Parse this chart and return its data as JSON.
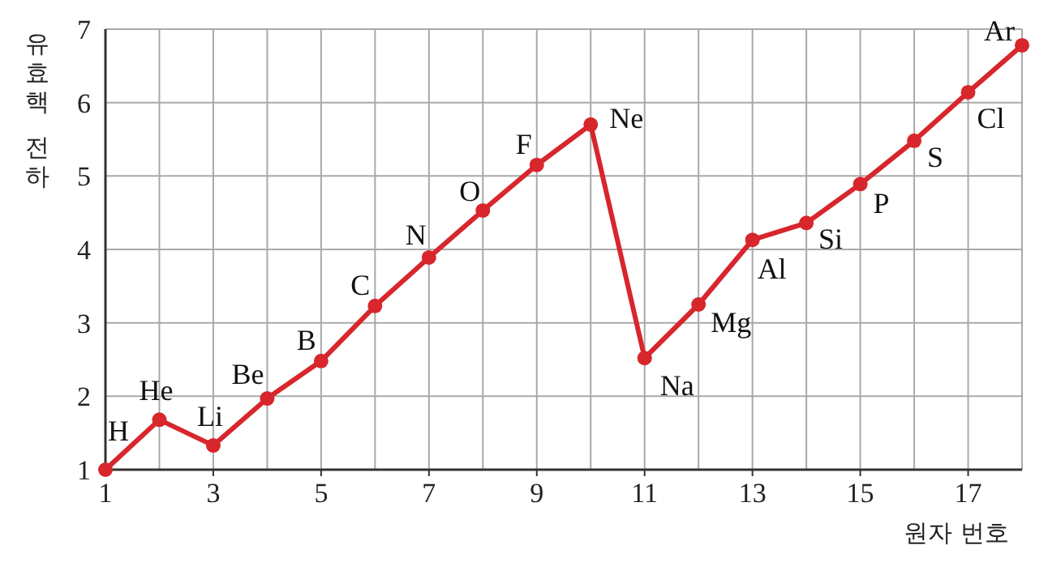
{
  "chart_data": {
    "type": "line",
    "xlabel": "원자 번호",
    "ylabel": "유효핵 전하",
    "x": [
      1,
      2,
      3,
      4,
      5,
      6,
      7,
      8,
      9,
      10,
      11,
      12,
      13,
      14,
      15,
      16,
      17,
      18
    ],
    "series": [
      {
        "color": "#d7262c",
        "values": [
          1,
          1.68,
          1.33,
          1.97,
          2.48,
          3.23,
          3.89,
          4.53,
          5.15,
          5.7,
          2.52,
          3.25,
          4.13,
          4.36,
          4.89,
          5.48,
          6.14,
          6.78
        ]
      }
    ],
    "xlim": [
      1,
      18
    ],
    "xticks": [
      1,
      3,
      5,
      7,
      9,
      11,
      13,
      15,
      17
    ],
    "ylim": [
      1,
      7
    ],
    "yticks": [
      1,
      2,
      3,
      4,
      5,
      6,
      7
    ],
    "grid": true,
    "marker": "circle",
    "line_style": "solid",
    "annotations": [
      {
        "text": "H",
        "x": 1,
        "y": 1
      },
      {
        "text": "He",
        "x": 2,
        "y": 1.68
      },
      {
        "text": "Li",
        "x": 3,
        "y": 1.33
      },
      {
        "text": "Be",
        "x": 4,
        "y": 1.97
      },
      {
        "text": "B",
        "x": 5,
        "y": 2.48
      },
      {
        "text": "C",
        "x": 6,
        "y": 3.23
      },
      {
        "text": "N",
        "x": 7,
        "y": 3.89
      },
      {
        "text": "O",
        "x": 8,
        "y": 4.53
      },
      {
        "text": "F",
        "x": 9,
        "y": 5.15
      },
      {
        "text": "Ne",
        "x": 10,
        "y": 5.7
      },
      {
        "text": "Na",
        "x": 11,
        "y": 2.52
      },
      {
        "text": "Mg",
        "x": 12,
        "y": 3.25
      },
      {
        "text": "Al",
        "x": 13,
        "y": 4.13
      },
      {
        "text": "Si",
        "x": 14,
        "y": 4.36
      },
      {
        "text": "P",
        "x": 15,
        "y": 4.89
      },
      {
        "text": "S",
        "x": 16,
        "y": 5.48
      },
      {
        "text": "Cl",
        "x": 17,
        "y": 6.14
      },
      {
        "text": "Ar",
        "x": 18,
        "y": 6.78
      }
    ]
  }
}
